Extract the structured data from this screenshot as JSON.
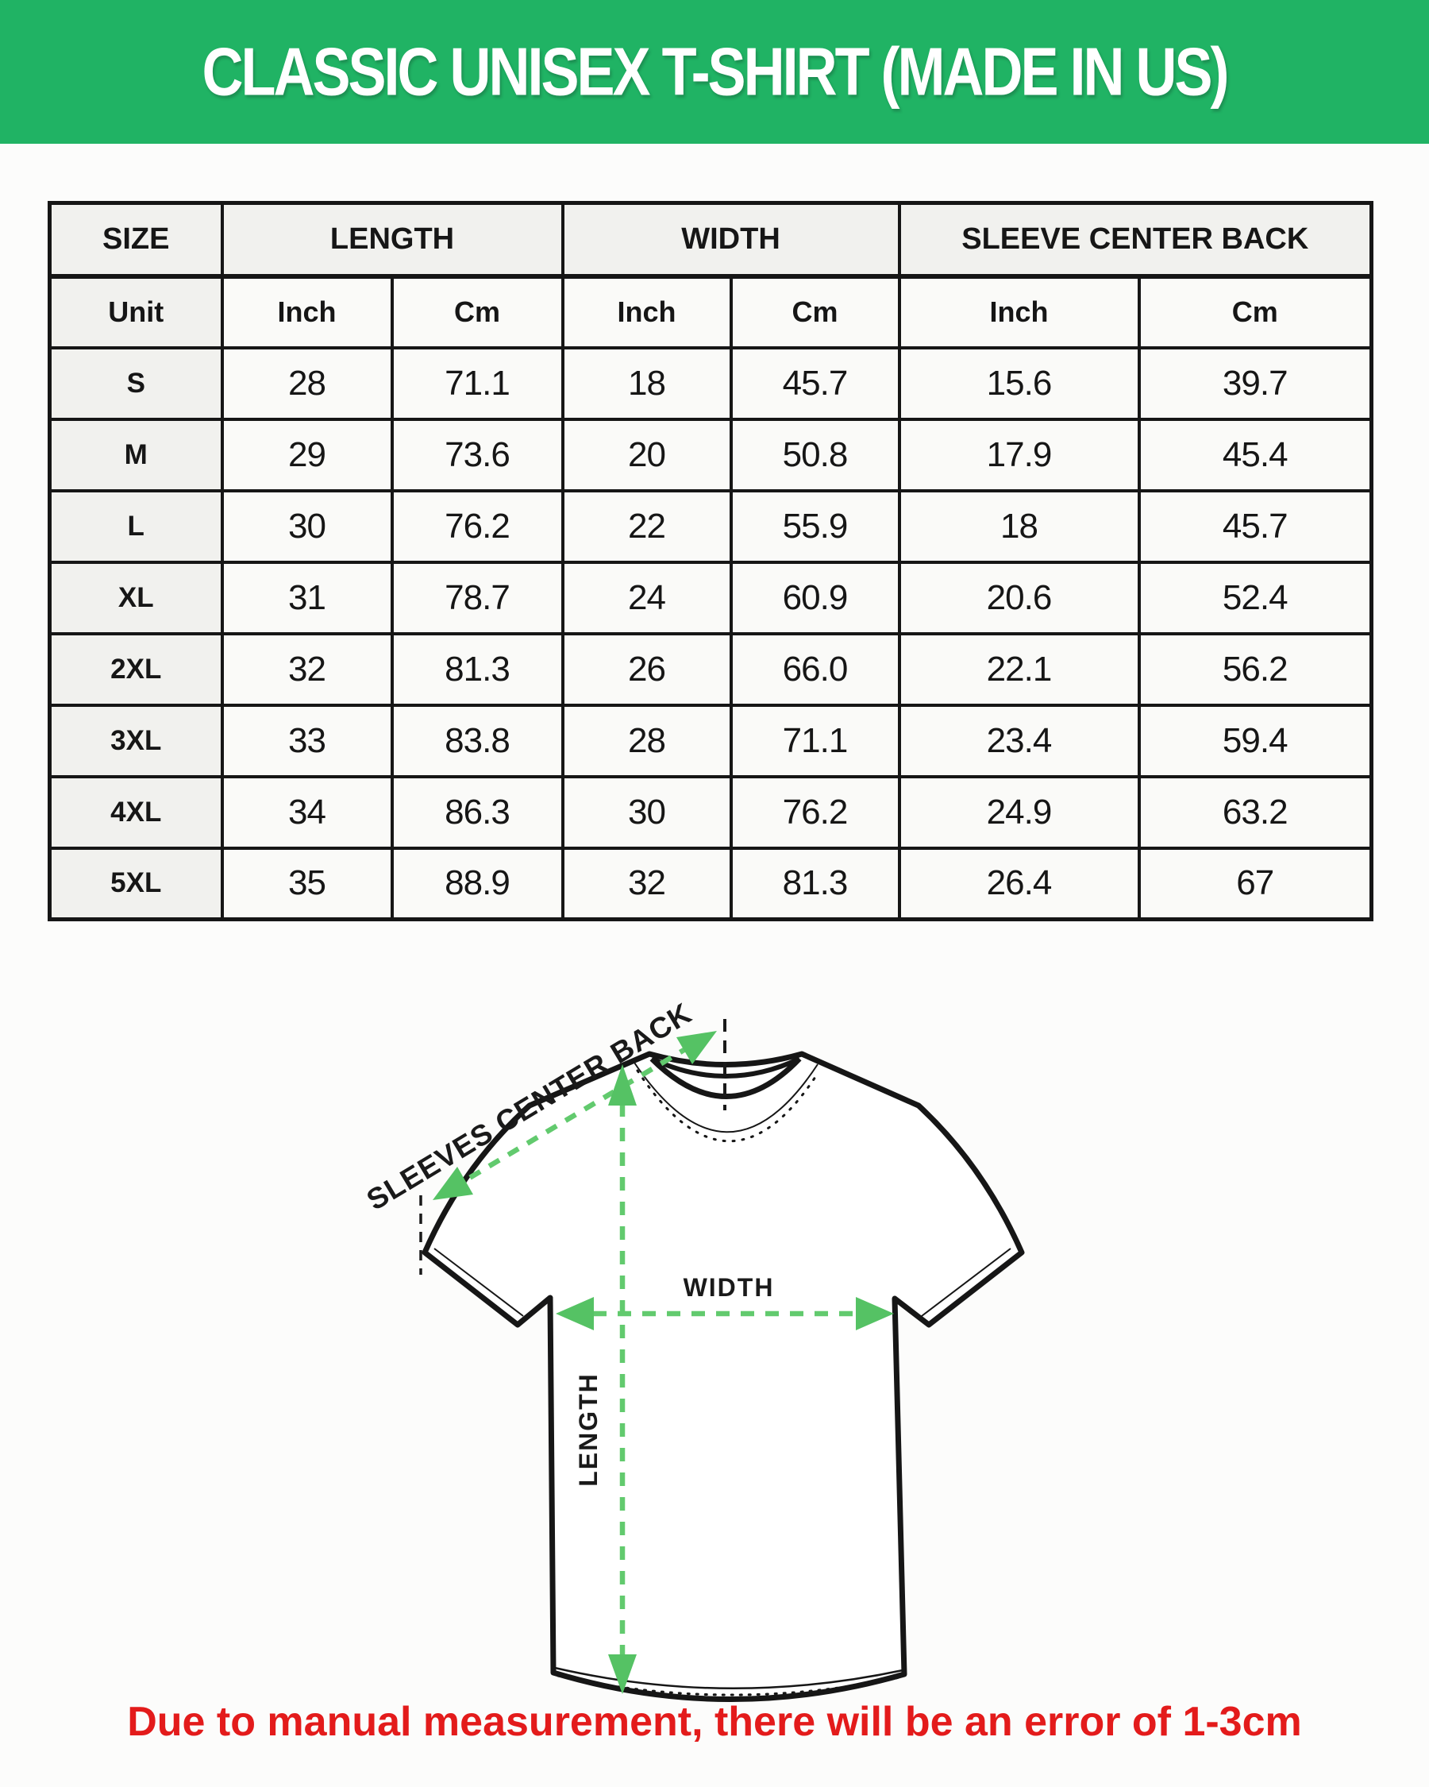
{
  "banner": {
    "title": "CLASSIC UNISEX T-SHIRT (MADE IN US)",
    "bg_color": "#20b364",
    "text_color": "#ffffff"
  },
  "size_chart": {
    "column_groups": [
      "SIZE",
      "LENGTH",
      "WIDTH",
      "SLEEVE CENTER BACK"
    ],
    "unit_row": [
      "Unit",
      "Inch",
      "Cm",
      "Inch",
      "Cm",
      "Inch",
      "Cm"
    ],
    "rows": [
      {
        "size": "S",
        "values": [
          "28",
          "71.1",
          "18",
          "45.7",
          "15.6",
          "39.7"
        ]
      },
      {
        "size": "M",
        "values": [
          "29",
          "73.6",
          "20",
          "50.8",
          "17.9",
          "45.4"
        ]
      },
      {
        "size": "L",
        "values": [
          "30",
          "76.2",
          "22",
          "55.9",
          "18",
          "45.7"
        ]
      },
      {
        "size": "XL",
        "values": [
          "31",
          "78.7",
          "24",
          "60.9",
          "20.6",
          "52.4"
        ]
      },
      {
        "size": "2XL",
        "values": [
          "32",
          "81.3",
          "26",
          "66.0",
          "22.1",
          "56.2"
        ]
      },
      {
        "size": "3XL",
        "values": [
          "33",
          "83.8",
          "28",
          "71.1",
          "23.4",
          "59.4"
        ]
      },
      {
        "size": "4XL",
        "values": [
          "34",
          "86.3",
          "30",
          "76.2",
          "24.9",
          "63.2"
        ]
      },
      {
        "size": "5XL",
        "values": [
          "35",
          "88.9",
          "32",
          "81.3",
          "26.4",
          "67"
        ]
      }
    ]
  },
  "diagram": {
    "sleeve_label": "SLEEVES CENTER BACK",
    "width_label": "WIDTH",
    "length_label": "LENGTH",
    "arrow_color": "#62ca6e",
    "outline_color": "#161616"
  },
  "note": {
    "text": "Due to manual measurement, there will be an error of 1-3cm",
    "color": "#e31b1b"
  }
}
